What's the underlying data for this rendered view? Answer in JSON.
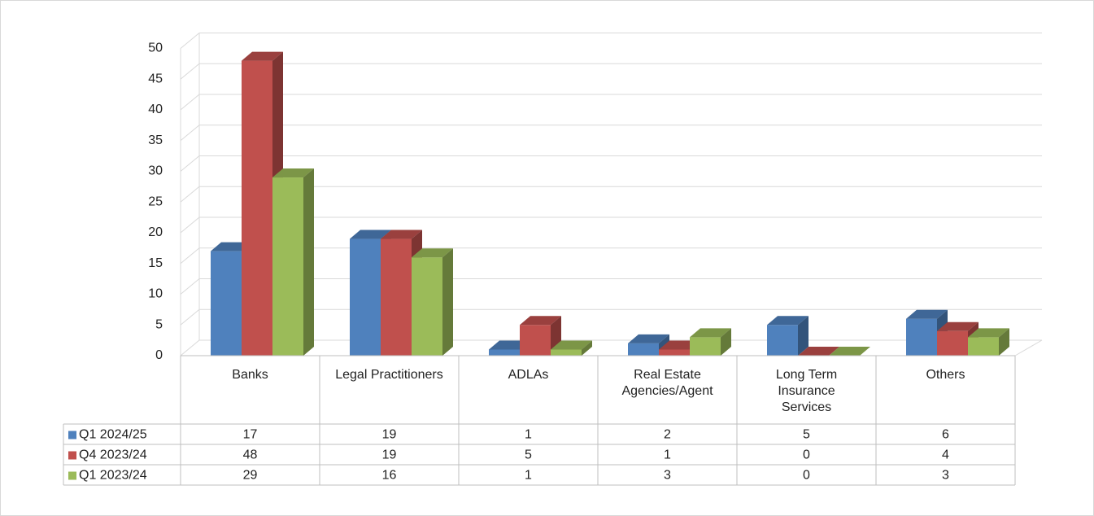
{
  "chart_data": {
    "type": "bar3d",
    "categories": [
      "Banks",
      "Legal Practitioners",
      "ADLAs",
      "Real Estate Agencies/Agent",
      "Long Term Insurance Services",
      "Others"
    ],
    "series": [
      {
        "name": "Q1 2024/25",
        "color": "#4f81bd",
        "values": [
          17,
          19,
          1,
          2,
          5,
          6
        ]
      },
      {
        "name": "Q4 2023/24",
        "color": "#c0504d",
        "values": [
          48,
          19,
          5,
          1,
          0,
          4
        ]
      },
      {
        "name": "Q1 2023/24",
        "color": "#9bbb59",
        "values": [
          29,
          16,
          1,
          3,
          0,
          3
        ]
      }
    ],
    "ylim": [
      0,
      50
    ],
    "yticks": [
      0,
      5,
      10,
      15,
      20,
      25,
      30,
      35,
      40,
      45,
      50
    ],
    "grid": true,
    "data_table": true
  }
}
